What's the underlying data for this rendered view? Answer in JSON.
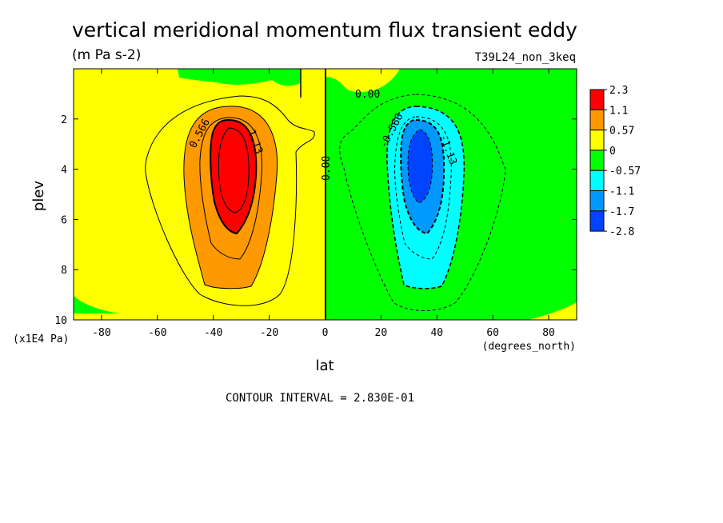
{
  "chart_data": {
    "type": "contour",
    "title": "vertical meridional momentum flux transient eddy",
    "units": "(m Pa s-2)",
    "run_label": "T39L24_non_3keq",
    "xlabel": "lat",
    "x_units": "(degrees_north)",
    "ylabel": "plev",
    "y_units": "(x1E4 Pa)",
    "xlim": [
      -90,
      90
    ],
    "ylim": [
      10,
      0
    ],
    "x_ticks": [
      "-80",
      "-60",
      "-40",
      "-20",
      "0",
      "20",
      "40",
      "60",
      "80"
    ],
    "y_ticks": [
      "2",
      "4",
      "6",
      "8",
      "10"
    ],
    "contour_interval_text": "CONTOUR INTERVAL = 2.830E-01",
    "colorbar": {
      "labels": [
        "2.3",
        "1.1",
        "0.57",
        "0",
        "-0.57",
        "-1.1",
        "-1.7",
        "-2.8"
      ],
      "colors": [
        "#ff0000",
        "#ff9900",
        "#ffff00",
        "#00ff00",
        "#00ffff",
        "#0099ff",
        "#0044ff"
      ]
    },
    "contour_labels": [
      "0.566",
      "1.13",
      "0.00",
      "0.00",
      "-0.566",
      "-1.13"
    ],
    "features": [
      {
        "sign": "positive",
        "center_lat": -33,
        "center_plev": 4,
        "max": 2.3
      },
      {
        "sign": "negative",
        "center_lat": 32,
        "center_plev": 4,
        "min": -2.8
      }
    ]
  }
}
